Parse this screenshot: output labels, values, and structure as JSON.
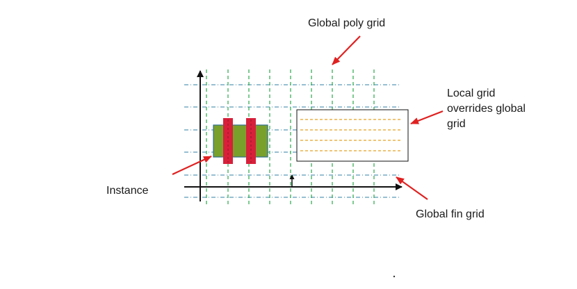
{
  "labels": {
    "global_poly_grid": "Global poly grid",
    "local_grid_line1": "Local grid",
    "local_grid_line2": "overrides global",
    "local_grid_line3": "grid",
    "instance": "Instance",
    "global_fin_grid": "Global fin grid"
  },
  "colors": {
    "poly_grid": "#2aa84a",
    "fin_grid": "#2f7fa6",
    "local_grid": "#e6a020",
    "instance_body": "#7aa02c",
    "instance_border": "#2f6f8f",
    "poly_gate": "#d8203a",
    "callout_arrow": "#e02020",
    "axis": "#111111"
  },
  "icons": {
    "axis_arrowheads": "arrowhead",
    "origin_marker": "up-arrow-icon",
    "callouts": "red-arrow-icon"
  }
}
